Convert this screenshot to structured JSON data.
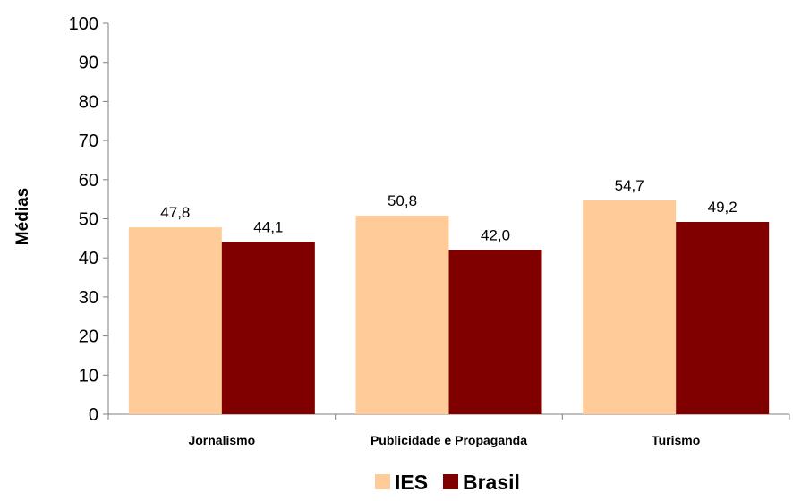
{
  "chart_data": {
    "type": "bar",
    "title": "",
    "xlabel": "",
    "ylabel": "Médias",
    "ylim": [
      0,
      100
    ],
    "yticks": [
      0,
      10,
      20,
      30,
      40,
      50,
      60,
      70,
      80,
      90,
      100
    ],
    "ytick_labels": [
      "0",
      "10",
      "20",
      "30",
      "40",
      "50",
      "60",
      "70",
      "80",
      "90",
      "100"
    ],
    "grid": false,
    "legend_position": "bottom-center",
    "categories": [
      "Jornalismo",
      "Publicidade e Propaganda",
      "Turismo"
    ],
    "series": [
      {
        "name": "IES",
        "color": "#FFCC99",
        "values": [
          47.8,
          50.8,
          54.7
        ],
        "labels": [
          "47,8",
          "50,8",
          "54,7"
        ]
      },
      {
        "name": "Brasil",
        "color": "#800000",
        "values": [
          44.1,
          42.0,
          49.2
        ],
        "labels": [
          "44,1",
          "42,0",
          "49,2"
        ]
      }
    ]
  }
}
